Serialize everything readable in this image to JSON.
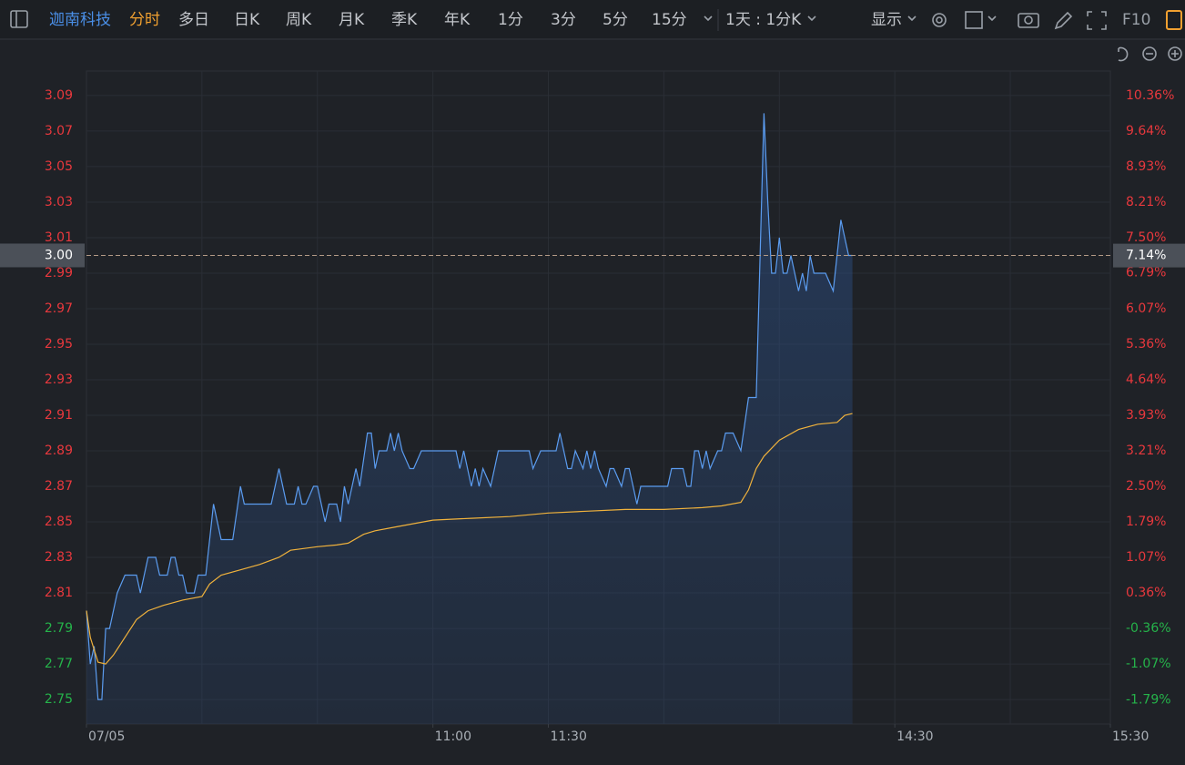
{
  "toolbar": {
    "stock": "迦南科技",
    "tabs": [
      "分时",
      "多日",
      "日K",
      "周K",
      "月K",
      "季K",
      "年K",
      "1分",
      "3分",
      "5分",
      "15分"
    ],
    "period": "1天 : 1分K",
    "display": "显示",
    "f10": "F10"
  },
  "chart_data": {
    "type": "line",
    "ylim": [
      2.7362,
      3.1038
    ],
    "yticks": [
      3.09,
      3.07,
      3.05,
      3.03,
      3.01,
      2.99,
      2.97,
      2.95,
      2.93,
      2.91,
      2.89,
      2.87,
      2.85,
      2.83,
      2.81,
      2.79,
      2.77,
      2.75
    ],
    "y2lim": [
      -2.279,
      10.85
    ],
    "y2ticks": [
      {
        "value": 10.36,
        "label": "10.36%"
      },
      {
        "value": 9.64,
        "label": "9.64%"
      },
      {
        "value": 8.93,
        "label": "8.93%"
      },
      {
        "value": 8.21,
        "label": "8.21%"
      },
      {
        "value": 7.5,
        "label": "7.50%"
      },
      {
        "value": 6.79,
        "label": "6.79%"
      },
      {
        "value": 6.07,
        "label": "6.07%"
      },
      {
        "value": 5.36,
        "label": "5.36%"
      },
      {
        "value": 4.64,
        "label": "4.64%"
      },
      {
        "value": 3.93,
        "label": "3.93%"
      },
      {
        "value": 3.21,
        "label": "3.21%"
      },
      {
        "value": 2.5,
        "label": "2.50%"
      },
      {
        "value": 1.79,
        "label": "1.79%"
      },
      {
        "value": 1.07,
        "label": "1.07%"
      },
      {
        "value": 0.36,
        "label": "0.36%"
      },
      {
        "value": -0.36,
        "label": "-0.36%"
      },
      {
        "value": -1.07,
        "label": "-1.07%"
      },
      {
        "value": -1.79,
        "label": "-1.79%"
      }
    ],
    "xlim": [
      0,
      266
    ],
    "xticks": [
      {
        "value": 0,
        "label": "07/05"
      },
      {
        "value": 90,
        "label": "11:00"
      },
      {
        "value": 120,
        "label": "11:30"
      },
      {
        "value": 210,
        "label": "14:30"
      },
      {
        "value": 266,
        "label": "15:30"
      }
    ],
    "xgrid": [
      30,
      60,
      90,
      120,
      150,
      180,
      210,
      240
    ],
    "grid": true,
    "up_color": "#e8383d",
    "down_color": "#25b34a",
    "last_price": {
      "value": 3.0,
      "label": "3.00"
    },
    "last_pct": {
      "value": 7.14,
      "label": "7.14%"
    },
    "series": [
      {
        "color": "#5b9cf0",
        "area": true,
        "x": [
          0,
          1,
          2,
          3,
          4,
          5,
          6,
          8,
          10,
          13,
          14,
          16,
          18,
          19,
          21,
          22,
          23,
          24,
          25,
          26,
          28,
          29,
          31,
          33,
          35,
          38,
          40,
          41,
          48,
          50,
          52,
          54,
          55,
          56,
          57,
          59,
          60,
          62,
          63,
          65,
          66,
          67,
          68,
          70,
          71,
          73,
          74,
          75,
          76,
          78,
          79,
          80,
          81,
          82,
          84,
          85,
          87,
          96,
          97,
          98,
          100,
          101,
          102,
          103,
          105,
          107,
          115,
          116,
          118,
          122,
          123,
          125,
          126,
          127,
          129,
          130,
          131,
          132,
          133,
          135,
          136,
          137,
          139,
          140,
          141,
          142,
          143,
          144,
          151,
          152,
          155,
          156,
          157,
          158,
          159,
          160,
          161,
          162,
          164,
          165,
          166,
          168,
          170,
          172,
          174,
          176,
          177,
          178,
          179,
          180,
          181,
          182,
          183,
          184,
          185,
          186,
          187,
          188,
          189,
          192,
          194,
          196,
          198,
          199
        ],
        "values": [
          2.8,
          2.77,
          2.78,
          2.75,
          2.75,
          2.79,
          2.79,
          2.81,
          2.82,
          2.82,
          2.81,
          2.83,
          2.83,
          2.82,
          2.82,
          2.83,
          2.83,
          2.82,
          2.82,
          2.81,
          2.81,
          2.82,
          2.82,
          2.86,
          2.84,
          2.84,
          2.87,
          2.86,
          2.86,
          2.88,
          2.86,
          2.86,
          2.87,
          2.86,
          2.86,
          2.87,
          2.87,
          2.85,
          2.86,
          2.86,
          2.85,
          2.87,
          2.86,
          2.88,
          2.87,
          2.9,
          2.9,
          2.88,
          2.89,
          2.89,
          2.9,
          2.89,
          2.9,
          2.89,
          2.88,
          2.88,
          2.89,
          2.89,
          2.88,
          2.89,
          2.87,
          2.88,
          2.87,
          2.88,
          2.87,
          2.89,
          2.89,
          2.88,
          2.89,
          2.89,
          2.9,
          2.88,
          2.88,
          2.89,
          2.88,
          2.89,
          2.88,
          2.89,
          2.88,
          2.87,
          2.88,
          2.88,
          2.87,
          2.88,
          2.88,
          2.87,
          2.86,
          2.87,
          2.87,
          2.88,
          2.88,
          2.87,
          2.87,
          2.89,
          2.89,
          2.88,
          2.89,
          2.88,
          2.89,
          2.89,
          2.9,
          2.9,
          2.89,
          2.92,
          2.92,
          3.08,
          3.03,
          2.99,
          2.99,
          3.01,
          2.99,
          2.99,
          3.0,
          2.99,
          2.98,
          2.99,
          2.98,
          3.0,
          2.99,
          2.99,
          2.98,
          3.02,
          3.0,
          3.0
        ]
      },
      {
        "color": "#f0b23c",
        "x": [
          0,
          1,
          3,
          5,
          7,
          10,
          13,
          16,
          20,
          25,
          30,
          32,
          35,
          40,
          45,
          50,
          53,
          60,
          65,
          68,
          72,
          75,
          80,
          90,
          100,
          110,
          120,
          130,
          140,
          150,
          160,
          165,
          170,
          172,
          174,
          176,
          180,
          185,
          190,
          195,
          197,
          199
        ],
        "values": [
          2.8,
          2.785,
          2.771,
          2.77,
          2.775,
          2.785,
          2.795,
          2.8,
          2.803,
          2.806,
          2.808,
          2.815,
          2.82,
          2.823,
          2.826,
          2.83,
          2.834,
          2.836,
          2.837,
          2.838,
          2.843,
          2.845,
          2.847,
          2.851,
          2.852,
          2.853,
          2.855,
          2.856,
          2.857,
          2.857,
          2.858,
          2.859,
          2.861,
          2.868,
          2.88,
          2.887,
          2.896,
          2.902,
          2.905,
          2.906,
          2.91,
          2.911
        ]
      }
    ]
  }
}
